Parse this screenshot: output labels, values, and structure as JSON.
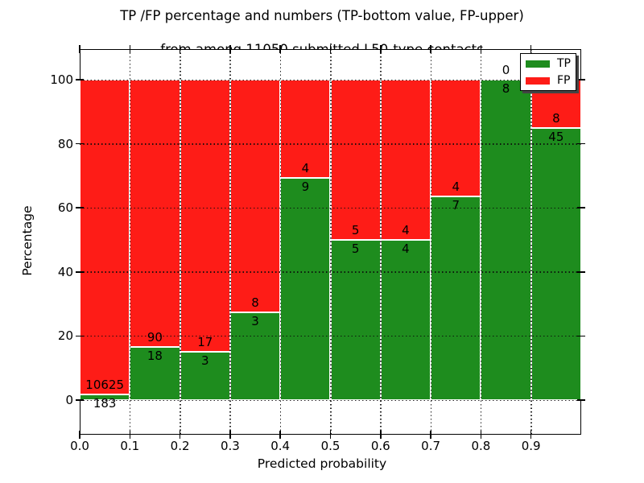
{
  "title": {
    "line1": "TP /FP percentage and numbers (TP-bottom value, FP-upper)",
    "line2": "from among 11050 submitted L50-type contacts"
  },
  "colors": {
    "tp_green": "#1e8c1e",
    "fp_red": "#fe1c17",
    "bar_edge": "#ffffff",
    "text": "#000000",
    "legend_shadow": "#444444"
  },
  "chart_data": {
    "type": "bar",
    "stacked": true,
    "title": "TP /FP percentage and numbers (TP-bottom value, FP-upper)\nfrom among 11050 submitted L50-type contacts",
    "xlabel": "Predicted probability",
    "ylabel": "Percentage",
    "xlim": [
      0.0,
      1.0
    ],
    "ylim": [
      -10.8,
      109.5
    ],
    "grid": true,
    "x_tick_labels": [
      "0.0",
      "0.1",
      "0.2",
      "0.3",
      "0.4",
      "0.5",
      "0.6",
      "0.7",
      "0.8",
      "0.9"
    ],
    "y_tick_labels": [
      "0",
      "20",
      "40",
      "60",
      "80",
      "100"
    ],
    "y_tick_values": [
      0,
      20,
      40,
      60,
      80,
      100
    ],
    "legend": {
      "position": "upper right",
      "entries": [
        {
          "label": "TP",
          "color": "#1e8c1e"
        },
        {
          "label": "FP",
          "color": "#fe1c17"
        }
      ]
    },
    "series_note": "each bar: green TP percentage at bottom, red FP percentage above, totals 100%",
    "bars": [
      {
        "range": "0.0-0.1",
        "tp_count": 183,
        "fp_count": 10625,
        "tp_label": "183",
        "fp_label": "10625"
      },
      {
        "range": "0.1-0.2",
        "tp_count": 18,
        "fp_count": 90,
        "tp_label": "18",
        "fp_label": "90"
      },
      {
        "range": "0.2-0.3",
        "tp_count": 3,
        "fp_count": 17,
        "tp_label": "3",
        "fp_label": "17"
      },
      {
        "range": "0.3-0.4",
        "tp_count": 3,
        "fp_count": 8,
        "tp_label": "3",
        "fp_label": "8"
      },
      {
        "range": "0.4-0.5",
        "tp_count": 9,
        "fp_count": 4,
        "tp_label": "9",
        "fp_label": "4"
      },
      {
        "range": "0.5-0.6",
        "tp_count": 5,
        "fp_count": 5,
        "tp_label": "5",
        "fp_label": "5"
      },
      {
        "range": "0.6-0.7",
        "tp_count": 4,
        "fp_count": 4,
        "tp_label": "4",
        "fp_label": "4"
      },
      {
        "range": "0.7-0.8",
        "tp_count": 7,
        "fp_count": 4,
        "tp_label": "7",
        "fp_label": "4"
      },
      {
        "range": "0.8-0.9",
        "tp_count": 8,
        "fp_count": 0,
        "tp_label": "8",
        "fp_label": "0"
      },
      {
        "range": "0.9-1.0",
        "tp_count": 45,
        "fp_count": 8,
        "tp_label": "45",
        "fp_label": "8"
      }
    ]
  }
}
